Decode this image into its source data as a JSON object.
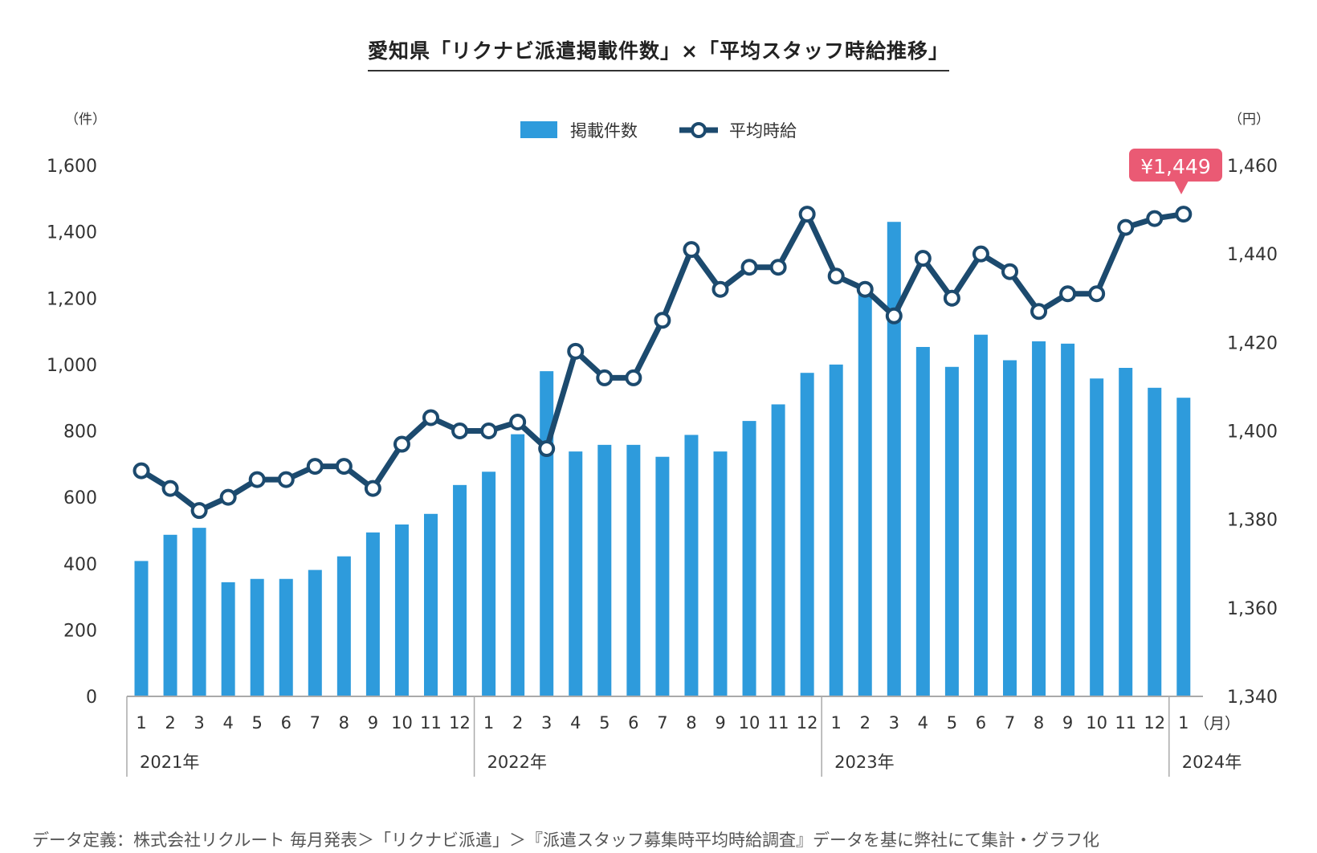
{
  "title": "愛知県「リクナビ派遣掲載件数」×「平均スタッフ時給推移」",
  "footnote": "データ定義：株式会社リクルート 毎月発表＞「リクナビ派遣」＞『派遣スタッフ募集時平均時給調査』データを基に弊社にて集計・グラフ化",
  "colors": {
    "bar": "#2e9bdc",
    "line": "#1c4a6e",
    "callout": "#ea5a74",
    "axis": "#aaaaaa"
  },
  "chart_data": {
    "type": "bar",
    "categories": [
      "1",
      "2",
      "3",
      "4",
      "5",
      "6",
      "7",
      "8",
      "9",
      "10",
      "11",
      "12",
      "1",
      "2",
      "3",
      "4",
      "5",
      "6",
      "7",
      "8",
      "9",
      "10",
      "11",
      "12",
      "1",
      "2",
      "3",
      "4",
      "5",
      "6",
      "7",
      "8",
      "9",
      "10",
      "11",
      "12",
      "1"
    ],
    "year_groups": [
      {
        "label": "2021年",
        "start": 0
      },
      {
        "label": "2022年",
        "start": 12
      },
      {
        "label": "2023年",
        "start": 24
      },
      {
        "label": "2024年",
        "start": 36
      }
    ],
    "x_unit": "（月）",
    "series": [
      {
        "name": "掲載件数",
        "type": "bar",
        "axis": "left",
        "values": [
          408,
          487,
          508,
          344,
          354,
          354,
          381,
          422,
          494,
          518,
          550,
          637,
          677,
          790,
          980,
          738,
          758,
          758,
          722,
          788,
          738,
          830,
          880,
          975,
          1000,
          1225,
          1430,
          1053,
          993,
          1090,
          1013,
          1070,
          1063,
          958,
          990,
          930,
          900
        ]
      },
      {
        "name": "平均時給",
        "type": "line",
        "axis": "right",
        "values": [
          1391,
          1387,
          1382,
          1385,
          1389,
          1389,
          1392,
          1392,
          1387,
          1397,
          1403,
          1400,
          1400,
          1402,
          1396,
          1418,
          1412,
          1412,
          1425,
          1441,
          1432,
          1437,
          1437,
          1449,
          1435,
          1432,
          1426,
          1439,
          1430,
          1440,
          1436,
          1427,
          1431,
          1431,
          1446,
          1448,
          1449
        ]
      }
    ],
    "y_left": {
      "label": "（件）",
      "min": 0,
      "max": 1600,
      "ticks": [
        0,
        200,
        400,
        600,
        800,
        1000,
        1200,
        1400,
        1600
      ],
      "tick_labels": [
        "0",
        "200",
        "400",
        "600",
        "800",
        "1,000",
        "1,200",
        "1,400",
        "1,600"
      ]
    },
    "y_right": {
      "label": "（円）",
      "min": 1340,
      "max": 1460,
      "ticks": [
        1340,
        1360,
        1380,
        1400,
        1420,
        1440,
        1460
      ],
      "tick_labels": [
        "1,340",
        "1,360",
        "1,380",
        "1,400",
        "1,420",
        "1,440",
        "1,460"
      ]
    },
    "callout": "¥1,449",
    "grid": false,
    "legend_position": "top-center"
  }
}
